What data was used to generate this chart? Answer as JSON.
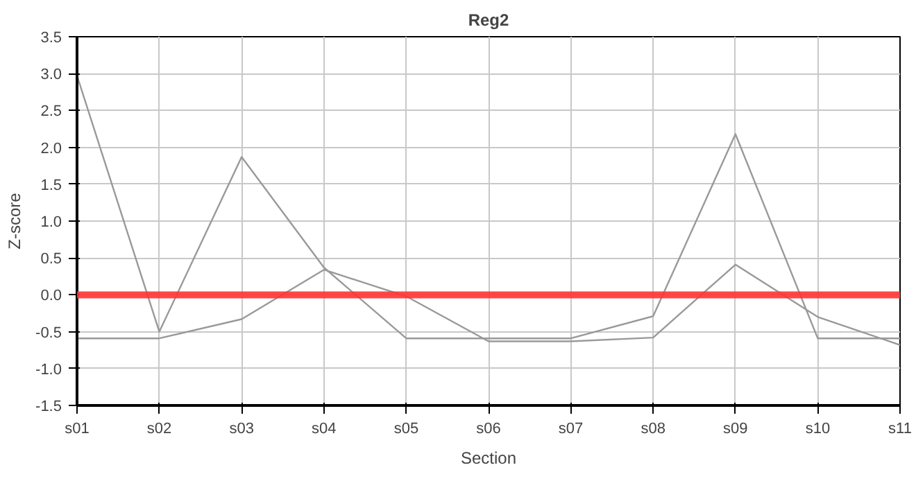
{
  "chart_data": {
    "type": "line",
    "title": "Reg2",
    "xlabel": "Section",
    "ylabel": "Z-score",
    "categories": [
      "s01",
      "s02",
      "s03",
      "s04",
      "s05",
      "s06",
      "s07",
      "s08",
      "s09",
      "s10",
      "s11"
    ],
    "series": [
      {
        "color": "#999999",
        "values": [
          2.97,
          -0.5,
          1.87,
          0.37,
          -0.59,
          -0.59,
          -0.59,
          -0.29,
          2.18,
          -0.59,
          -0.59
        ]
      },
      {
        "color": "#999999",
        "values": [
          -0.59,
          -0.59,
          -0.33,
          0.34,
          -0.02,
          -0.63,
          -0.63,
          -0.58,
          0.41,
          -0.3,
          -0.68
        ]
      }
    ],
    "ylim": [
      -1.5,
      3.5
    ],
    "yticks": [
      {
        "value": -1.5,
        "label": "-1.5"
      },
      {
        "value": -1.0,
        "label": "-1.0"
      },
      {
        "value": -0.5,
        "label": "-0.5"
      },
      {
        "value": 0.0,
        "label": "0.0"
      },
      {
        "value": 0.5,
        "label": "0.5"
      },
      {
        "value": 1.0,
        "label": "1.0"
      },
      {
        "value": 1.5,
        "label": "1.5"
      },
      {
        "value": 2.0,
        "label": "2.0"
      },
      {
        "value": 2.5,
        "label": "2.5"
      },
      {
        "value": 3.0,
        "label": "3.0"
      },
      {
        "value": 3.5,
        "label": "3.5"
      }
    ],
    "ref_lines": [
      {
        "axis": "y",
        "value": 0,
        "label": null,
        "color": "#ff3333"
      }
    ],
    "grid": true,
    "marker": "none",
    "line_style": "solid"
  }
}
